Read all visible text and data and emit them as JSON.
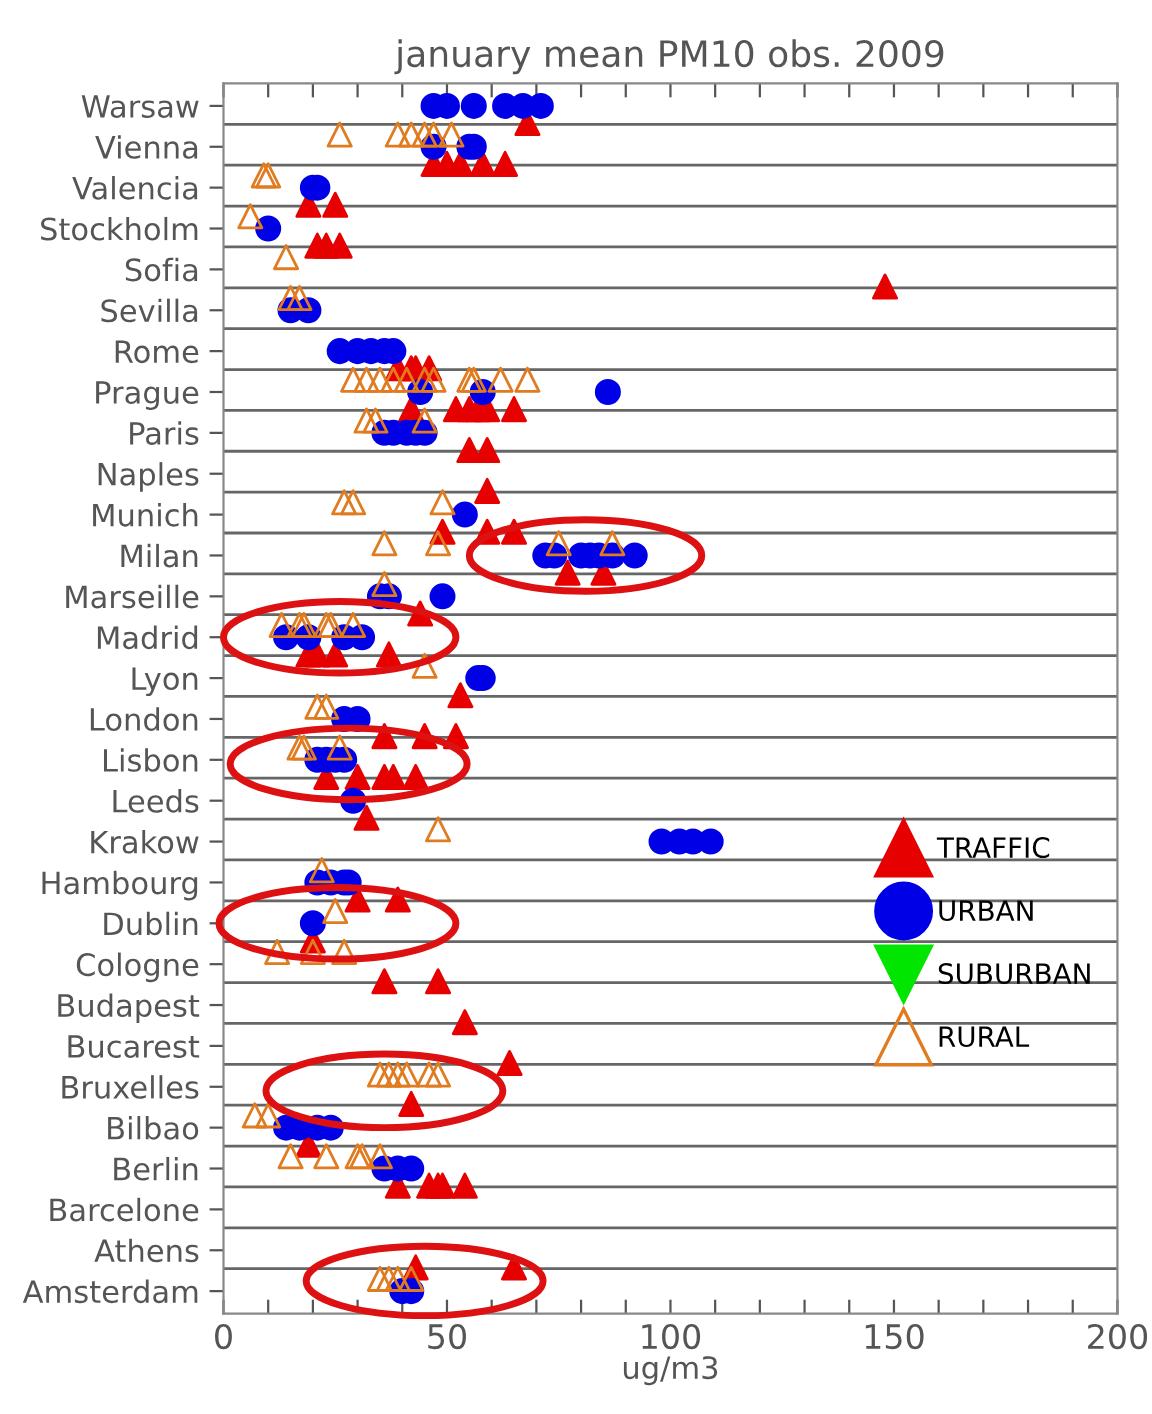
{
  "chart_data": {
    "type": "scatter",
    "orientation": "horizontal",
    "title": "january mean PM10 obs. 2009",
    "xlabel": "ug/m3",
    "categories": [
      "Warsaw",
      "Vienna",
      "Valencia",
      "Stockholm",
      "Sofia",
      "Sevilla",
      "Rome",
      "Prague",
      "Paris",
      "Naples",
      "Munich",
      "Milan",
      "Marseille",
      "Madrid",
      "Lyon",
      "London",
      "Lisbon",
      "Leeds",
      "Krakow",
      "Hambourg",
      "Dublin",
      "Cologne",
      "Budapest",
      "Bucarest",
      "Bruxelles",
      "Bilbao",
      "Berlin",
      "Barcelone",
      "Athens",
      "Amsterdam"
    ],
    "xlim": [
      0,
      200
    ],
    "xticks": [
      0,
      {
        "value": 10,
        "label": null
      },
      {
        "value": 20,
        "label": null
      },
      {
        "value": 30,
        "label": null
      },
      {
        "value": 40,
        "label": null
      },
      50,
      {
        "value": 60,
        "label": null
      },
      {
        "value": 70,
        "label": null
      },
      {
        "value": 80,
        "label": null
      },
      {
        "value": 90,
        "label": null
      },
      100,
      {
        "value": 110,
        "label": null
      },
      {
        "value": 120,
        "label": null
      },
      {
        "value": 130,
        "label": null
      },
      {
        "value": 140,
        "label": null
      },
      150,
      {
        "value": 160,
        "label": null
      },
      {
        "value": 170,
        "label": null
      },
      {
        "value": 180,
        "label": null
      },
      {
        "value": 190,
        "label": null
      },
      200
    ],
    "grid": "y",
    "legend": "right",
    "series": [
      {
        "name": "TRAFFIC",
        "color": "#e60000",
        "marker": "triangle",
        "x": [
          "Warsaw",
          "Vienna",
          "Vienna",
          "Vienna",
          "Vienna",
          "Vienna",
          "Valencia",
          "Valencia",
          "Stockholm",
          "Stockholm",
          "Stockholm",
          "Sofia",
          "Rome",
          "Rome",
          "Rome",
          "Rome",
          "Prague",
          "Prague",
          "Prague",
          "Prague",
          "Prague",
          "Prague",
          "Paris",
          "Paris",
          "Naples",
          "Munich",
          "Munich",
          "Munich",
          "Milan",
          "Milan",
          "Marseille",
          "Madrid",
          "Madrid",
          "Madrid",
          "Madrid",
          "Lyon",
          "London",
          "London",
          "London",
          "Lisbon",
          "Lisbon",
          "Lisbon",
          "Lisbon",
          "Lisbon",
          "Leeds",
          "Hambourg",
          "Hambourg",
          "Dublin",
          "Cologne",
          "Cologne",
          "Budapest",
          "Bucarest",
          "Bruxelles",
          "Bilbao",
          "Berlin",
          "Berlin",
          "Berlin",
          "Berlin",
          "Berlin",
          "Athens",
          "Athens"
        ],
        "values": [
          68,
          47,
          50,
          53,
          58,
          63,
          19,
          25,
          21,
          23,
          26,
          148,
          39,
          42,
          43,
          46,
          42,
          52,
          55,
          57,
          59,
          65,
          55,
          59,
          59,
          49,
          59,
          65,
          77,
          85,
          44,
          19,
          21,
          25,
          37,
          53,
          36,
          45,
          52,
          23,
          30,
          36,
          38,
          43,
          32,
          30,
          39,
          20,
          36,
          48,
          54,
          64,
          42,
          19,
          39,
          46,
          48,
          49,
          54,
          43,
          65
        ]
      },
      {
        "name": "URBAN",
        "color": "#0000e6",
        "marker": "circle",
        "x": [
          "Warsaw",
          "Warsaw",
          "Warsaw",
          "Warsaw",
          "Warsaw",
          "Warsaw",
          "Vienna",
          "Vienna",
          "Vienna",
          "Valencia",
          "Valencia",
          "Stockholm",
          "Sevilla",
          "Sevilla",
          "Rome",
          "Rome",
          "Rome",
          "Rome",
          "Rome",
          "Prague",
          "Prague",
          "Prague",
          "Paris",
          "Paris",
          "Paris",
          "Paris",
          "Paris",
          "Munich",
          "Milan",
          "Milan",
          "Milan",
          "Milan",
          "Milan",
          "Milan",
          "Milan",
          "Marseille",
          "Marseille",
          "Marseille",
          "Madrid",
          "Madrid",
          "Madrid",
          "Madrid",
          "Lyon",
          "Lyon",
          "London",
          "London",
          "Lisbon",
          "Lisbon",
          "Lisbon",
          "Lisbon",
          "Leeds",
          "Krakow",
          "Krakow",
          "Krakow",
          "Krakow",
          "Hambourg",
          "Hambourg",
          "Hambourg",
          "Hambourg",
          "Dublin",
          "Bilbao",
          "Bilbao",
          "Bilbao",
          "Bilbao",
          "Berlin",
          "Berlin",
          "Berlin",
          "Amsterdam",
          "Amsterdam"
        ],
        "values": [
          47,
          50,
          56,
          63,
          67,
          71,
          47,
          55,
          56,
          20,
          21,
          10,
          15,
          19,
          26,
          30,
          33,
          36,
          38,
          44,
          58,
          86,
          36,
          38,
          41,
          43,
          45,
          54,
          72,
          74,
          80,
          82,
          84,
          87,
          92,
          35,
          37,
          49,
          14,
          19,
          27,
          31,
          57,
          58,
          27,
          30,
          21,
          23,
          25,
          27,
          29,
          98,
          102,
          105,
          109,
          21,
          24,
          27,
          28,
          20,
          14,
          17,
          21,
          24,
          36,
          39,
          42,
          40,
          42
        ]
      },
      {
        "name": "SUBURBAN",
        "color": "#00e600",
        "marker": "triangle",
        "values": [
          null,
          null,
          null,
          null,
          null,
          null,
          null,
          null,
          null,
          null,
          null,
          null,
          null,
          null,
          null,
          null,
          null,
          null,
          null,
          null,
          null,
          null,
          null,
          null,
          null,
          null,
          null,
          null,
          null,
          null
        ]
      },
      {
        "name": "RURAL",
        "color": "#e07b20",
        "marker": "triangle",
        "x": [
          "Vienna",
          "Vienna",
          "Vienna",
          "Vienna",
          "Vienna",
          "Vienna",
          "Valencia",
          "Valencia",
          "Stockholm",
          "Sofia",
          "Sevilla",
          "Sevilla",
          "Prague",
          "Prague",
          "Prague",
          "Prague",
          "Prague",
          "Prague",
          "Prague",
          "Prague",
          "Prague",
          "Prague",
          "Prague",
          "Paris",
          "Paris",
          "Paris",
          "Munich",
          "Munich",
          "Munich",
          "Milan",
          "Milan",
          "Milan",
          "Milan",
          "Marseille",
          "Madrid",
          "Madrid",
          "Madrid",
          "Madrid",
          "Madrid",
          "Madrid",
          "Lyon",
          "London",
          "London",
          "Lisbon",
          "Lisbon",
          "Lisbon",
          "Krakow",
          "Hambourg",
          "Dublin",
          "Cologne",
          "Cologne",
          "Cologne",
          "Bruxelles",
          "Bruxelles",
          "Bruxelles",
          "Bruxelles",
          "Bruxelles",
          "Bruxelles",
          "Bilbao",
          "Bilbao",
          "Berlin",
          "Berlin",
          "Berlin",
          "Berlin",
          "Berlin",
          "Amsterdam",
          "Amsterdam",
          "Amsterdam",
          "Amsterdam"
        ],
        "values": [
          26,
          39,
          42,
          45,
          47,
          51,
          9,
          10,
          6,
          14,
          15,
          17,
          29,
          32,
          35,
          38,
          41,
          45,
          47,
          55,
          56,
          62,
          68,
          32,
          34,
          45,
          27,
          29,
          49,
          36,
          48,
          75,
          87,
          36,
          13,
          17,
          18,
          23,
          24,
          29,
          45,
          21,
          23,
          17,
          18,
          26,
          48,
          22,
          25,
          12,
          20,
          27,
          35,
          37,
          39,
          41,
          46,
          48,
          7,
          10,
          15,
          23,
          30,
          31,
          35,
          35,
          37,
          39,
          42
        ]
      }
    ]
  }
}
